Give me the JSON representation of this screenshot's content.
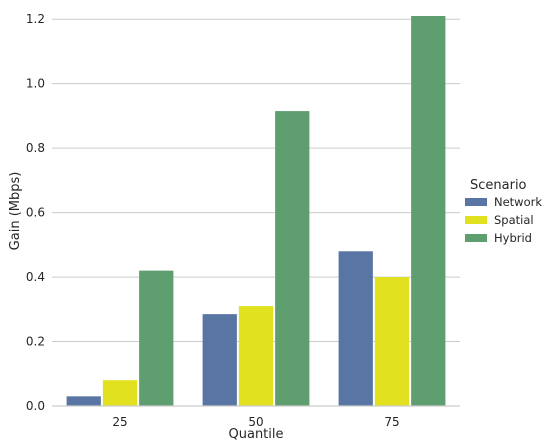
{
  "chart_data": {
    "type": "bar",
    "title": "",
    "xlabel": "Quantile",
    "ylabel": "Gain (Mbps)",
    "categories": [
      "25",
      "50",
      "75"
    ],
    "series": [
      {
        "name": "Network",
        "color": "#5975a4",
        "values": [
          0.03,
          0.285,
          0.48
        ]
      },
      {
        "name": "Spatial",
        "color": "#e1e11f",
        "values": [
          0.08,
          0.31,
          0.4
        ]
      },
      {
        "name": "Hybrid",
        "color": "#5f9e6e",
        "values": [
          0.42,
          0.915,
          1.21
        ]
      }
    ],
    "ylim": [
      0,
      1.21
    ],
    "yticks": [
      "0.0",
      "0.2",
      "0.4",
      "0.6",
      "0.8",
      "1.0",
      "1.2"
    ],
    "grid": "horizontal",
    "legend": {
      "title": "Scenario",
      "placement": "right"
    }
  }
}
